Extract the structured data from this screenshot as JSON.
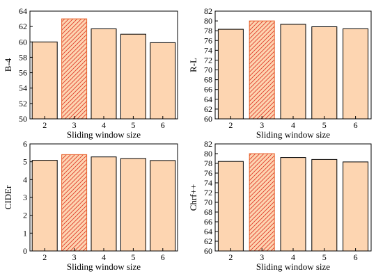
{
  "colors": {
    "bar_fill": "#fdd5b1",
    "bar_stroke": "#000000",
    "highlight_fill": "#fdd5b1",
    "highlight_stroke": "#e8622c",
    "hatch": "#e03a2a"
  },
  "chart_data": [
    {
      "type": "bar",
      "categories": [
        "2",
        "3",
        "4",
        "5",
        "6"
      ],
      "values": [
        60.0,
        63.0,
        61.7,
        61.0,
        59.9
      ],
      "highlight_index": 1,
      "xlabel": "Sliding window size",
      "ylabel": "B-4",
      "ylim": [
        50,
        64
      ],
      "yticks": [
        50,
        52,
        54,
        56,
        58,
        60,
        62,
        64
      ],
      "grid": false
    },
    {
      "type": "bar",
      "categories": [
        "2",
        "3",
        "4",
        "5",
        "6"
      ],
      "values": [
        78.3,
        80.0,
        79.3,
        78.8,
        78.4
      ],
      "highlight_index": 1,
      "xlabel": "Sliding window size",
      "ylabel": "R-L",
      "ylim": [
        60,
        82
      ],
      "yticks": [
        60,
        62,
        64,
        66,
        68,
        70,
        72,
        74,
        76,
        78,
        80,
        82
      ],
      "grid": false
    },
    {
      "type": "bar",
      "categories": [
        "2",
        "3",
        "4",
        "5",
        "6"
      ],
      "values": [
        5.08,
        5.4,
        5.27,
        5.18,
        5.07
      ],
      "highlight_index": 1,
      "xlabel": "Sliding window size",
      "ylabel": "CIDEr",
      "ylim": [
        0,
        6
      ],
      "yticks": [
        0,
        1,
        2,
        3,
        4,
        5,
        6
      ],
      "grid": false
    },
    {
      "type": "bar",
      "categories": [
        "2",
        "3",
        "4",
        "5",
        "6"
      ],
      "values": [
        78.4,
        80.0,
        79.2,
        78.8,
        78.3
      ],
      "highlight_index": 1,
      "xlabel": "Sliding window size",
      "ylabel": "Chrf++",
      "ylim": [
        60,
        82
      ],
      "yticks": [
        60,
        62,
        64,
        66,
        68,
        70,
        72,
        74,
        76,
        78,
        80,
        82
      ],
      "grid": false
    }
  ]
}
